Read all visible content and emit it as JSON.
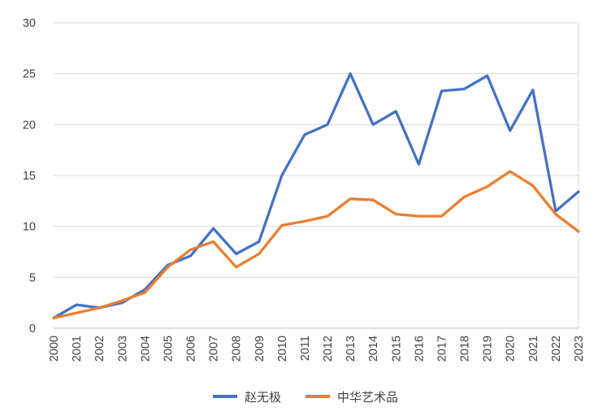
{
  "chart_data": {
    "type": "line",
    "title": "",
    "xlabel": "",
    "ylabel": "",
    "categories": [
      "2000",
      "2001",
      "2002",
      "2003",
      "2004",
      "2005",
      "2006",
      "2007",
      "2008",
      "2009",
      "2010",
      "2011",
      "2012",
      "2013",
      "2014",
      "2015",
      "2016",
      "2017",
      "2018",
      "2019",
      "2020",
      "2021",
      "2022",
      "2023"
    ],
    "series": [
      {
        "name": "赵无极",
        "color": "#4472C4",
        "values": [
          1,
          2.3,
          2,
          2.5,
          3.8,
          6.2,
          7.1,
          9.8,
          7.3,
          8.5,
          15,
          19,
          20,
          25,
          20,
          21.3,
          16.1,
          23.3,
          23.5,
          24.8,
          19.4,
          23.4,
          11.5,
          13.4
        ]
      },
      {
        "name": "中华艺术品",
        "color": "#ED7D31",
        "values": [
          1,
          1.5,
          2,
          2.7,
          3.5,
          6,
          7.7,
          8.5,
          6,
          7.3,
          10.1,
          10.5,
          11,
          12.7,
          12.6,
          11.2,
          11,
          11,
          12.9,
          13.9,
          15.4,
          14,
          11.2,
          9.5
        ]
      }
    ],
    "ylim": [
      0,
      30
    ],
    "ytick_step": 5,
    "y_tick_labels": [
      "0",
      "5",
      "10",
      "15",
      "20",
      "25",
      "30"
    ],
    "grid": "horizontal",
    "grid_color": "#D9D9D9",
    "axis_line_color": "#BFBFBF",
    "axis_label_color": "#404040",
    "legend_position": "bottom"
  }
}
